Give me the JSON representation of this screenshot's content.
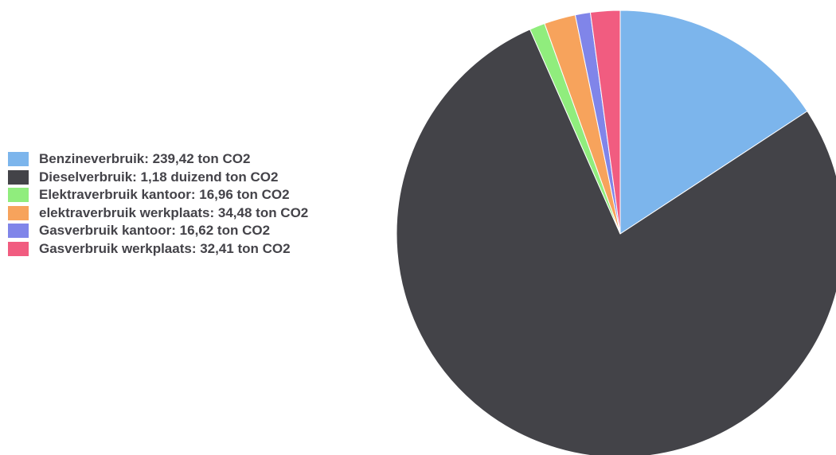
{
  "chart_data": {
    "type": "pie",
    "title": "",
    "unit": "ton CO2",
    "start_angle_deg": 0,
    "direction": "clockwise",
    "legend_position": "left",
    "slices": [
      {
        "name": "Benzineverbruik",
        "value": 239.42,
        "label": "Benzineverbruik: 239,42 ton CO2",
        "color": "#7cb5ec"
      },
      {
        "name": "Dieselverbruik",
        "value": 1180,
        "label": "Dieselverbruik: 1,18 duizend ton CO2",
        "color": "#434348"
      },
      {
        "name": "Elektraverbruik kantoor",
        "value": 16.96,
        "label": "Elektraverbruik kantoor: 16,96 ton CO2",
        "color": "#90ed7d"
      },
      {
        "name": "elektraverbruik werkplaats",
        "value": 34.48,
        "label": "elektraverbruik werkplaats: 34,48 ton CO2",
        "color": "#f7a35c"
      },
      {
        "name": "Gasverbruik kantoor",
        "value": 16.62,
        "label": "Gasverbruik kantoor: 16,62 ton CO2",
        "color": "#8085e9"
      },
      {
        "name": "Gasverbruik werkplaats",
        "value": 32.41,
        "label": "Gasverbruik werkplaats: 32,41 ton CO2",
        "color": "#f15c80"
      }
    ]
  }
}
